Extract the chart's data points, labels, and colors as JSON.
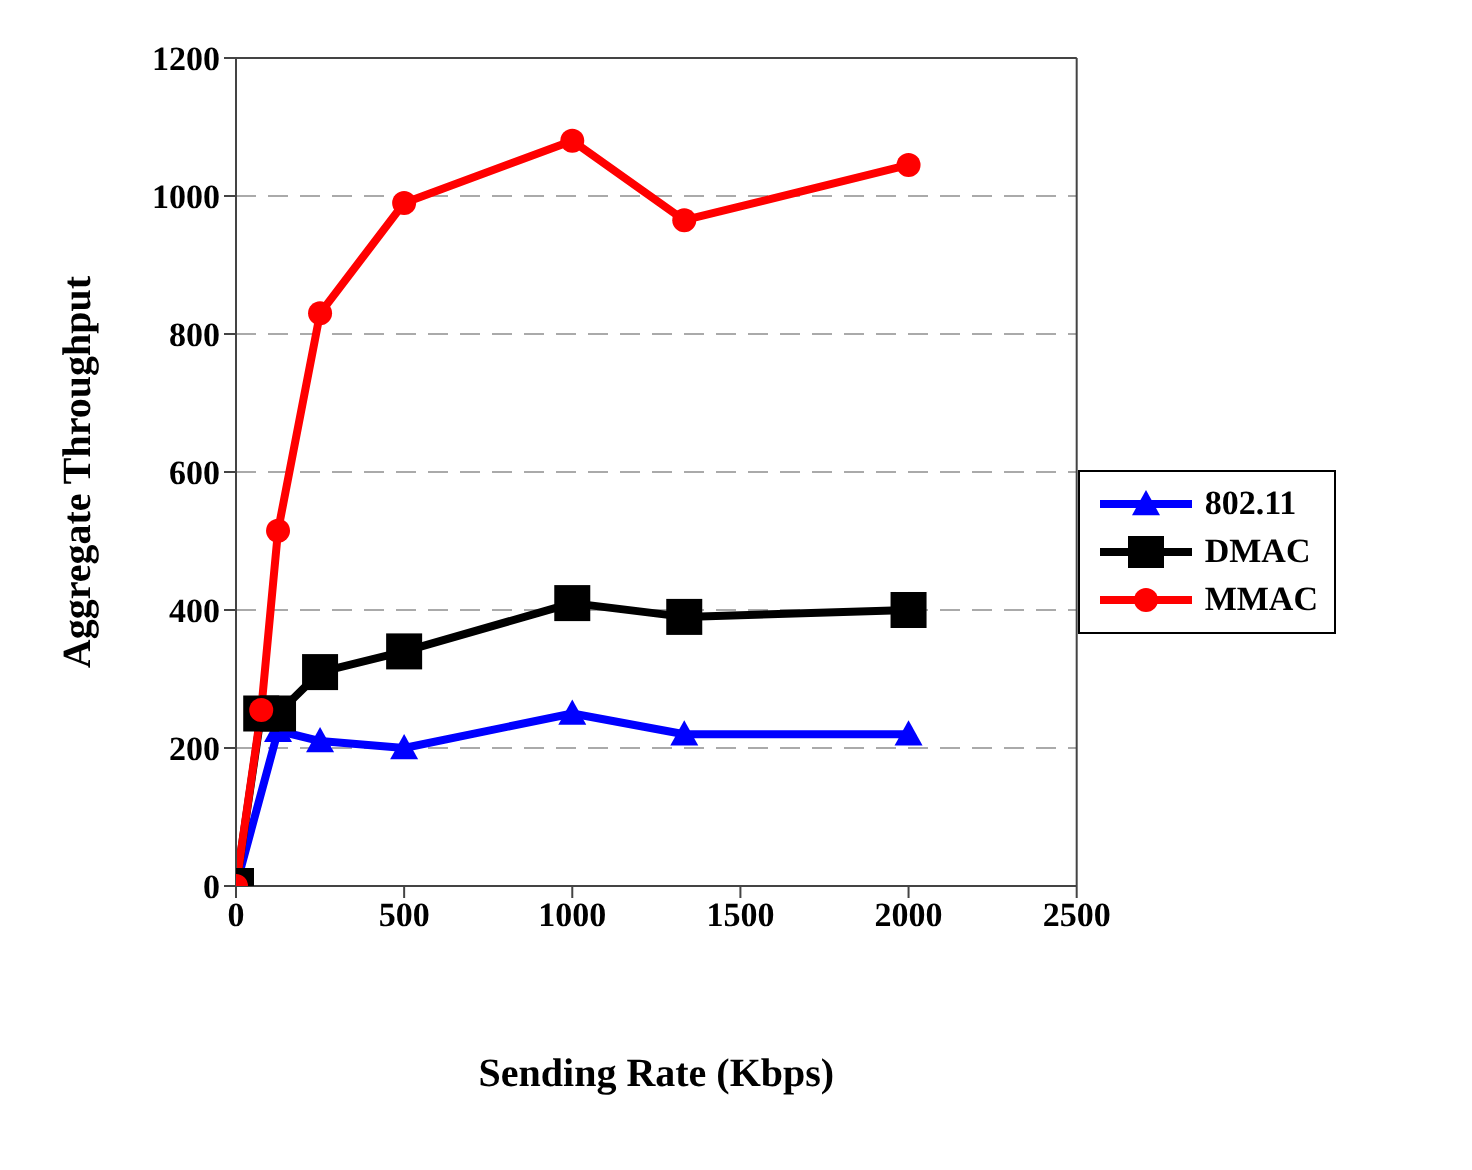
{
  "chart_data": {
    "type": "line",
    "xlabel": "Sending Rate (Kbps)",
    "ylabel": "Aggregate Throughput",
    "xlim": [
      0,
      2500
    ],
    "xticks": [
      0,
      500,
      1000,
      1500,
      2000,
      2500
    ],
    "ylim": [
      0,
      1200
    ],
    "yticks": [
      0,
      200,
      400,
      600,
      800,
      1000,
      1200
    ],
    "grid": "y",
    "legend": "right",
    "line_style": "solid",
    "series": [
      {
        "name": "802.11",
        "color": "#0000ff",
        "marker": "triangle",
        "x": [
          0,
          125,
          250,
          500,
          1000,
          1333,
          2000
        ],
        "values": [
          0,
          225,
          210,
          200,
          250,
          220,
          220
        ]
      },
      {
        "name": "DMAC",
        "color": "#000000",
        "marker": "square",
        "x": [
          0,
          75,
          125,
          250,
          500,
          1000,
          1333,
          2000
        ],
        "values": [
          0,
          250,
          250,
          310,
          340,
          410,
          390,
          400
        ]
      },
      {
        "name": "MMAC",
        "color": "#ff0000",
        "marker": "circle",
        "x": [
          0,
          75,
          125,
          250,
          500,
          1000,
          1333,
          2000
        ],
        "values": [
          0,
          255,
          515,
          830,
          990,
          1080,
          965,
          1045
        ]
      }
    ]
  }
}
